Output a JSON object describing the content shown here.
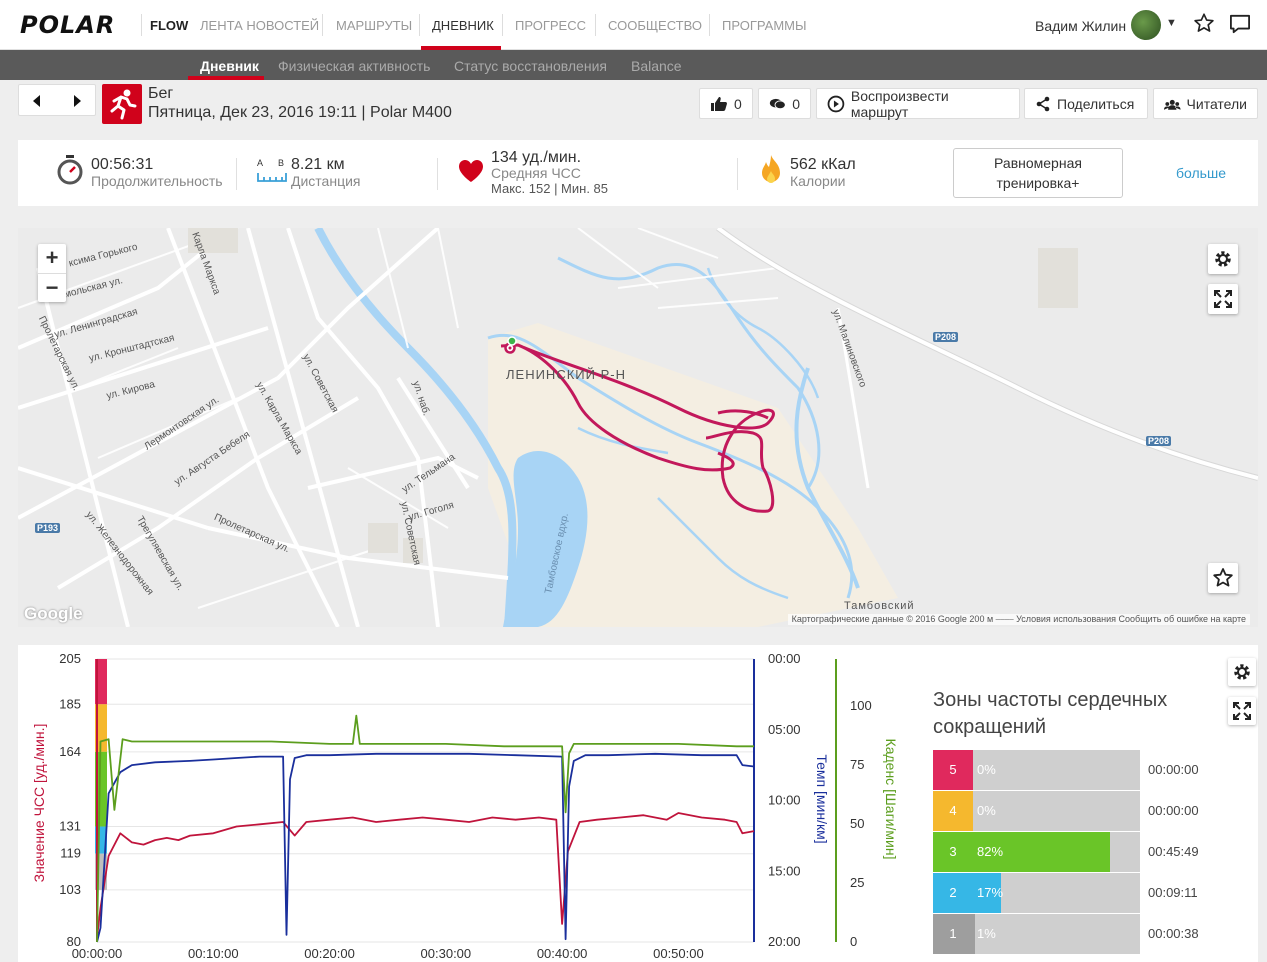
{
  "nav": {
    "logo": "POLAR",
    "flow": "FLOW",
    "items": [
      "ЛЕНТА НОВОСТЕЙ",
      "МАРШРУТЫ",
      "ДНЕВНИК",
      "ПРОГРЕСС",
      "СООБЩЕСТВО",
      "ПРОГРАММЫ"
    ],
    "active": "ДНЕВНИК",
    "user": "Вадим Жилин"
  },
  "subnav": {
    "items": [
      "Дневник",
      "Физическая активность",
      "Статус восстановления",
      "Balance"
    ],
    "active": "Дневник"
  },
  "session": {
    "sport": "Бег",
    "info": "Пятница, Дек 23, 2016 19:11  |  Polar M400",
    "likes": "0",
    "comments": "0",
    "replay": "Воспроизвести маршрут",
    "share": "Поделиться",
    "readers": "Читатели"
  },
  "summary": {
    "duration": {
      "value": "00:56:31",
      "label": "Продолжительность"
    },
    "distance": {
      "value": "8.21 км",
      "label": "Дистанция",
      "icon_a": "A",
      "icon_b": "B"
    },
    "hr": {
      "value": "134 уд./мин.",
      "label": "Средняя ЧСС",
      "maxmin": "Макс. 152  |  Мин. 85"
    },
    "calories": {
      "value": "562 кКал",
      "label": "Калории"
    },
    "benefit": "Равномерная тренировка+",
    "more": "больше"
  },
  "map": {
    "labels": {
      "district": "ЛЕНИНСКИЙ Р-Н",
      "tambov": "Тамбовский",
      "reservoir": "Тамбовское вдхр.",
      "gorkogo": "ксима Горького",
      "komsomolskaya": "омольская ул.",
      "leningradskaya": "ул. Ленинградская",
      "kronshtadtskaya": "ул. Кронштадтская",
      "kirova": "ул. Кирова",
      "lermontovskaya": "Лермонтовская ул.",
      "bebelya": "ул. Августа Бебеля",
      "karla_marksa_1": "Карла Маркса",
      "karla_marksa_2": "ул. Карла Маркса",
      "sovetskaya_1": "ул. Советская",
      "sovetskaya_2": "ул. Советская",
      "telmana": "ул. Тельмана",
      "gogolya": "ул. Гоголя",
      "proletarskaya_1": "Пролетарская ул.",
      "proletarskaya_2": "Пролетарская ул.",
      "zheleznodorozhnaya": "ул. Железнодорожная",
      "trегулаевская": "Трегуляевская ул.",
      "malinovskogo": "ул. Малиновского",
      "naberezhnaya": "ул. наб.",
      "r208_1": "P208",
      "r208_2": "P208",
      "r193": "P193"
    },
    "footer": "Картографические данные © 2016 Google   200 м   ⎯⎯⎯⎯   Условия использования   Сообщить об ошибке на карте",
    "google": "Google"
  },
  "chart_data": {
    "type": "line",
    "x_ticks": [
      "00:00:00",
      "00:10:00",
      "00:20:00",
      "00:30:00",
      "00:40:00",
      "00:50:00"
    ],
    "x_range_min": [
      0,
      56.5
    ],
    "hr_axis": {
      "label": "Значение ЧСС [уд./мин.]",
      "ticks": [
        205,
        185,
        164,
        131,
        119,
        103,
        80
      ],
      "range": [
        80,
        205
      ],
      "color": "#c0143c"
    },
    "pace_axis": {
      "label": "Темп [мин/км]",
      "ticks": [
        "00:00",
        "05:00",
        "10:00",
        "15:00",
        "20:00"
      ],
      "range": [
        0,
        20
      ],
      "color": "#1a2f9c"
    },
    "cadence_axis": {
      "label": "Каденс [Шаги/мин]",
      "ticks": [
        100,
        75,
        50,
        25,
        0
      ],
      "range": [
        0,
        120
      ],
      "color": "#5c9e1e"
    },
    "series": [
      {
        "name": "Значение ЧСС",
        "color": "#c0143c",
        "x": [
          0,
          0.3,
          1,
          2,
          3,
          4,
          5,
          6,
          7,
          8,
          10,
          12,
          14,
          16,
          17,
          18,
          20,
          22,
          24,
          26,
          28,
          30,
          32,
          34,
          36,
          38,
          39.5,
          40,
          40.5,
          41.5,
          43,
          45,
          47,
          49,
          50,
          52,
          54,
          55,
          55.5,
          56.5
        ],
        "values": [
          82,
          95,
          118,
          128,
          124,
          123,
          125,
          126,
          125,
          127,
          128,
          131,
          132,
          133,
          127,
          133,
          134,
          135,
          133,
          134,
          135,
          134,
          133,
          135,
          134,
          135,
          134,
          88,
          120,
          133,
          134,
          135,
          136,
          134,
          137,
          135,
          134,
          133,
          128,
          129
        ]
      },
      {
        "name": "Темп",
        "color": "#1a2f9c",
        "x": [
          0,
          0.3,
          1,
          2,
          3,
          5,
          8,
          10,
          12,
          14,
          16,
          16.3,
          16.6,
          17,
          18,
          20,
          24,
          28,
          32,
          36,
          40,
          40.3,
          40.6,
          41,
          42,
          44,
          48,
          52,
          55,
          55.5,
          56.5
        ],
        "values": [
          20,
          19,
          9.5,
          8.0,
          7.5,
          7.3,
          7.2,
          7.1,
          7.0,
          6.9,
          6.9,
          19.5,
          8.5,
          7.0,
          6.8,
          6.8,
          6.7,
          6.7,
          6.7,
          6.8,
          6.9,
          19.8,
          9.0,
          7.2,
          6.8,
          6.8,
          6.7,
          6.8,
          6.8,
          7.5,
          7.6
        ]
      },
      {
        "name": "Каденс",
        "color": "#5c9e1e",
        "x": [
          0,
          0.3,
          1,
          1.5,
          2.2,
          3,
          5,
          10,
          15,
          20,
          22,
          22.3,
          22.6,
          25,
          30,
          35,
          40,
          40.3,
          40.6,
          41,
          45,
          50,
          55,
          56.5
        ],
        "values": [
          0,
          85,
          86,
          56,
          86,
          85,
          85,
          85,
          85,
          84,
          84,
          96,
          84,
          84,
          84,
          83,
          83,
          55,
          80,
          84,
          84,
          84,
          83,
          83
        ]
      }
    ],
    "zone_bands": [
      {
        "zone": 5,
        "from": 185,
        "to": 205,
        "color": "#e0295d"
      },
      {
        "zone": 4,
        "from": 164,
        "to": 185,
        "color": "#f5b82e"
      },
      {
        "zone": 3,
        "from": 131,
        "to": 164,
        "color": "#6ac528"
      },
      {
        "zone": 2,
        "from": 119,
        "to": 131,
        "color": "#36b7e6"
      },
      {
        "zone": 1,
        "from": 103,
        "to": 119,
        "color": "#bfbfbf"
      }
    ]
  },
  "zones": {
    "title": "Зоны частоты сердечных сокращений",
    "rows": [
      {
        "zone": "5",
        "pct": "0%",
        "pct_value": 0,
        "time": "00:00:00",
        "color": "#e0295d"
      },
      {
        "zone": "4",
        "pct": "0%",
        "pct_value": 0,
        "time": "00:00:00",
        "color": "#f5b82e"
      },
      {
        "zone": "3",
        "pct": "82%",
        "pct_value": 82,
        "time": "00:45:49",
        "color": "#6ac528"
      },
      {
        "zone": "2",
        "pct": "17%",
        "pct_value": 17,
        "time": "00:09:11",
        "color": "#36b7e6"
      },
      {
        "zone": "1",
        "pct": "1%",
        "pct_value": 1,
        "time": "00:00:38",
        "color": "#9e9e9e"
      }
    ]
  }
}
